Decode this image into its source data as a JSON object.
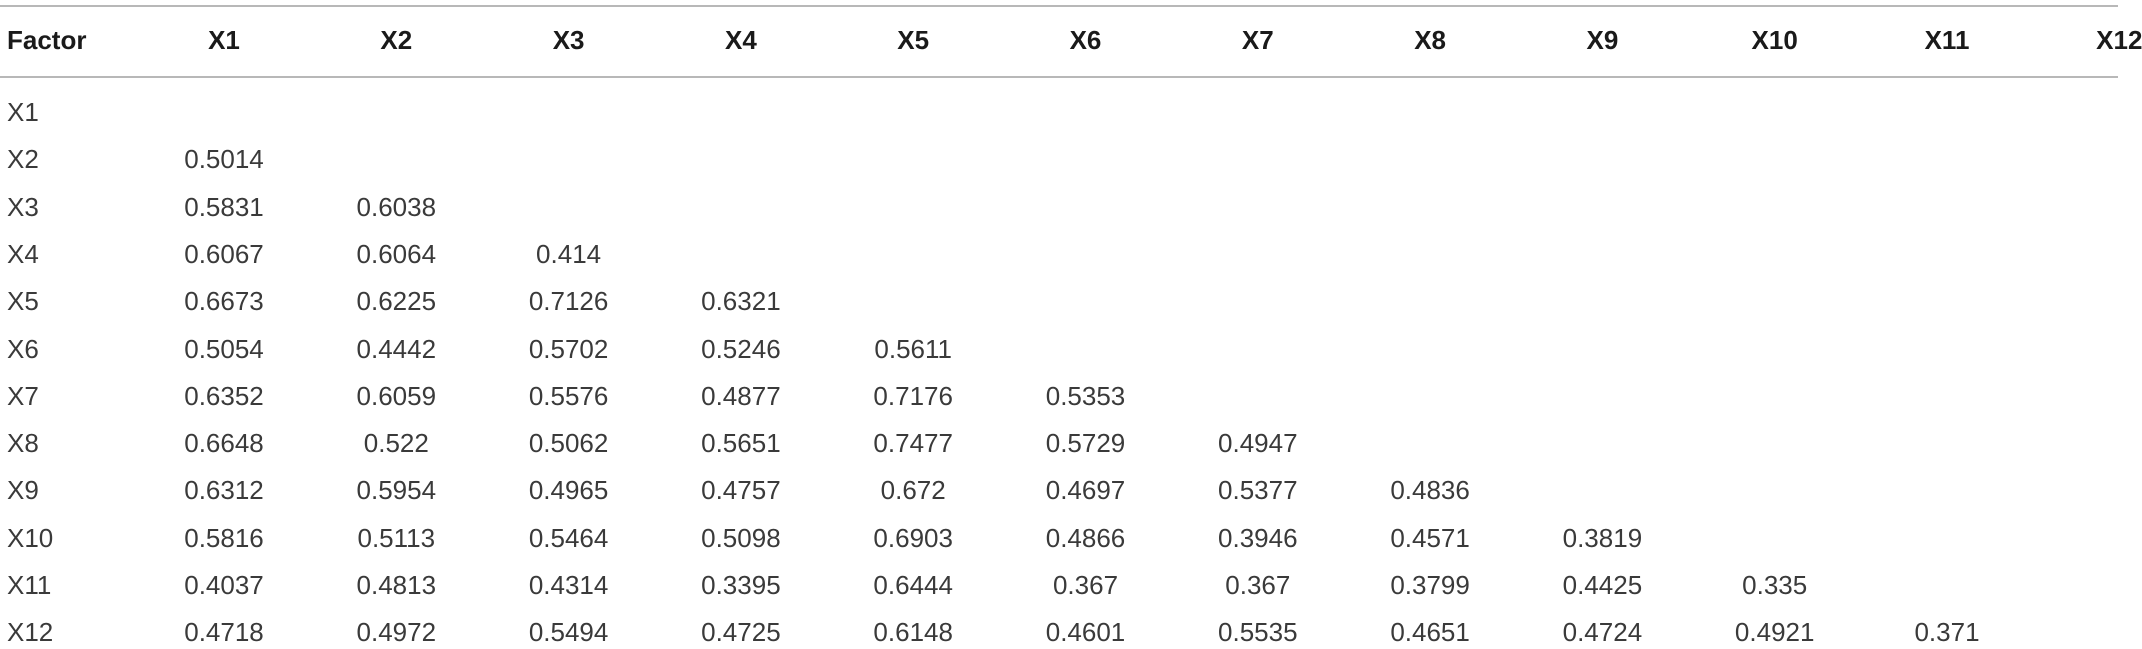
{
  "table": {
    "header": [
      "Factor",
      "X1",
      "X2",
      "X3",
      "X4",
      "X5",
      "X6",
      "X7",
      "X8",
      "X9",
      "X10",
      "X11",
      "X12"
    ],
    "rows": [
      {
        "label": "X1",
        "values": []
      },
      {
        "label": "X2",
        "values": [
          0.5014
        ]
      },
      {
        "label": "X3",
        "values": [
          0.5831,
          0.6038
        ]
      },
      {
        "label": "X4",
        "values": [
          0.6067,
          0.6064,
          0.414
        ]
      },
      {
        "label": "X5",
        "values": [
          0.6673,
          0.6225,
          0.7126,
          0.6321
        ]
      },
      {
        "label": "X6",
        "values": [
          0.5054,
          0.4442,
          0.5702,
          0.5246,
          0.5611
        ]
      },
      {
        "label": "X7",
        "values": [
          0.6352,
          0.6059,
          0.5576,
          0.4877,
          0.7176,
          0.5353
        ]
      },
      {
        "label": "X8",
        "values": [
          0.6648,
          0.522,
          0.5062,
          0.5651,
          0.7477,
          0.5729,
          0.4947
        ]
      },
      {
        "label": "X9",
        "values": [
          0.6312,
          0.5954,
          0.4965,
          0.4757,
          0.672,
          0.4697,
          0.5377,
          0.4836
        ]
      },
      {
        "label": "X10",
        "values": [
          0.5816,
          0.5113,
          0.5464,
          0.5098,
          0.6903,
          0.4866,
          0.3946,
          0.4571,
          0.3819
        ]
      },
      {
        "label": "X11",
        "values": [
          0.4037,
          0.4813,
          0.4314,
          0.3395,
          0.6444,
          0.367,
          0.367,
          0.3799,
          0.4425,
          0.335
        ]
      },
      {
        "label": "X12",
        "values": [
          0.4718,
          0.4972,
          0.5494,
          0.4725,
          0.6148,
          0.4601,
          0.5535,
          0.4651,
          0.4724,
          0.4921,
          0.371
        ]
      }
    ]
  }
}
